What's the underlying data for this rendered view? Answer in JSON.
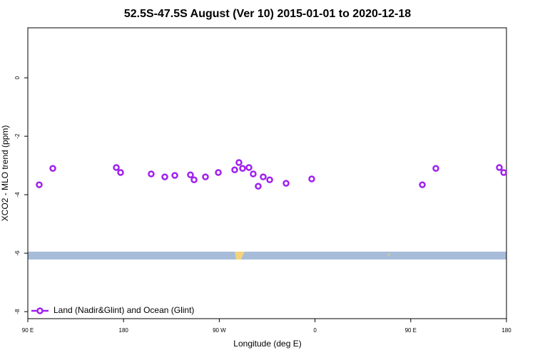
{
  "chart_data": {
    "type": "scatter",
    "title": "52.5S-47.5S August (Ver 10)   2015-01-01 to 2020-12-18",
    "x_label": "Longitude (deg E)",
    "y_label": "XCO2 - MLO trend (ppm)",
    "xlim": [
      90,
      540
    ],
    "ylim": [
      -8.24,
      1.71
    ],
    "xticks": [
      {
        "value": 90,
        "label": "90 E"
      },
      180,
      {
        "value": 270,
        "label": "90 W"
      },
      {
        "value": 360,
        "label": "0"
      },
      {
        "value": 450,
        "label": "90 E"
      },
      {
        "value": 540,
        "label": "180"
      }
    ],
    "yticks": [
      0,
      -2,
      -4,
      -6,
      -8
    ],
    "legend": "bottom-left",
    "series": [
      {
        "name": "Land (Nadir&Glint) and Ocean (Glint)",
        "color": "#a020f0",
        "x": [
          100.7,
          113.5,
          173.2,
          177.2,
          206,
          218.8,
          228.2,
          242.9,
          246.3,
          257,
          269.1,
          284.5,
          288.5,
          291.9,
          297.9,
          301.9,
          306.6,
          311.3,
          317.4,
          332.8,
          356.9,
          460.9,
          473.6,
          533.3,
          537.4
        ],
        "values": [
          -3.66,
          -3.1,
          -3.07,
          -3.24,
          -3.29,
          -3.39,
          -3.34,
          -3.32,
          -3.49,
          -3.39,
          -3.24,
          -3.15,
          -2.9,
          -3.1,
          -3.07,
          -3.29,
          -3.71,
          -3.39,
          -3.49,
          -3.61,
          -3.46,
          -3.66,
          -3.1,
          -3.07,
          -3.24
        ]
      }
    ]
  }
}
